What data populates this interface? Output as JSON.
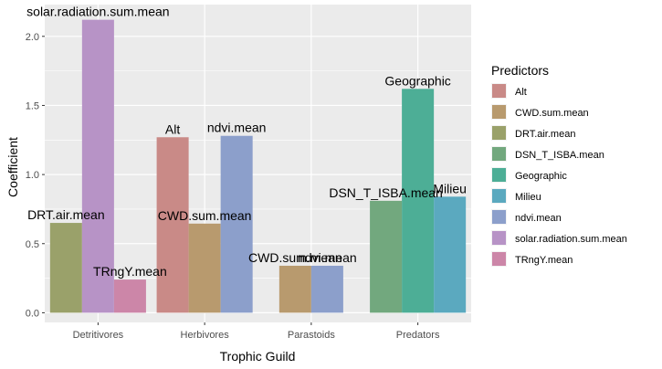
{
  "chart_data": {
    "type": "bar",
    "xlabel": "Trophic Guild",
    "ylabel": "Coefficient",
    "ylim": [
      -0.07,
      2.23
    ],
    "yticks": [
      0.0,
      0.5,
      1.0,
      1.5,
      2.0
    ],
    "ytick_labels": [
      "0.0",
      "0.5",
      "1.0",
      "1.5",
      "2.0"
    ],
    "grid": true,
    "legend": {
      "title": "Predictors",
      "position": "right",
      "items": [
        {
          "name": "Alt",
          "color": "#C98A87"
        },
        {
          "name": "CWD.sum.mean",
          "color": "#B89A6E"
        },
        {
          "name": "DRT.air.mean",
          "color": "#9AA16A"
        },
        {
          "name": "DSN_T_ISBA.mean",
          "color": "#72A87E"
        },
        {
          "name": "Geographic",
          "color": "#4DAE96"
        },
        {
          "name": "Milieu",
          "color": "#5BA9BF"
        },
        {
          "name": "ndvi.mean",
          "color": "#8C9FCB"
        },
        {
          "name": "solar.radiation.sum.mean",
          "color": "#B793C6"
        },
        {
          "name": "TRngY.mean",
          "color": "#CC86A8"
        }
      ]
    },
    "categories": [
      {
        "name": "Detritivores",
        "bars": [
          {
            "predictor": "DRT.air.mean",
            "value": 0.65,
            "label": "DRT.air.mean"
          },
          {
            "predictor": "solar.radiation.sum.mean",
            "value": 2.12,
            "label": "solar.radiation.sum.mean"
          },
          {
            "predictor": "TRngY.mean",
            "value": 0.24,
            "label": "TRngY.mean"
          }
        ]
      },
      {
        "name": "Herbivores",
        "bars": [
          {
            "predictor": "Alt",
            "value": 1.27,
            "label": "Alt"
          },
          {
            "predictor": "CWD.sum.mean",
            "value": 0.645,
            "label": "CWD.sum.mean"
          },
          {
            "predictor": "ndvi.mean",
            "value": 1.28,
            "label": "ndvi.mean"
          }
        ]
      },
      {
        "name": "Parastoids",
        "bars": [
          {
            "predictor": "CWD.sum.mean",
            "value": 0.34,
            "label": "CWD.sum.mean"
          },
          {
            "predictor": "ndvi.mean",
            "value": 0.34,
            "label": "ndvi.mean"
          }
        ]
      },
      {
        "name": "Predators",
        "bars": [
          {
            "predictor": "DSN_T_ISBA.mean",
            "value": 0.81,
            "label": "DSN_T_ISBA.mean"
          },
          {
            "predictor": "Geographic",
            "value": 1.62,
            "label": "Geographic"
          },
          {
            "predictor": "Milieu",
            "value": 0.84,
            "label": "Milieu"
          }
        ]
      }
    ]
  }
}
